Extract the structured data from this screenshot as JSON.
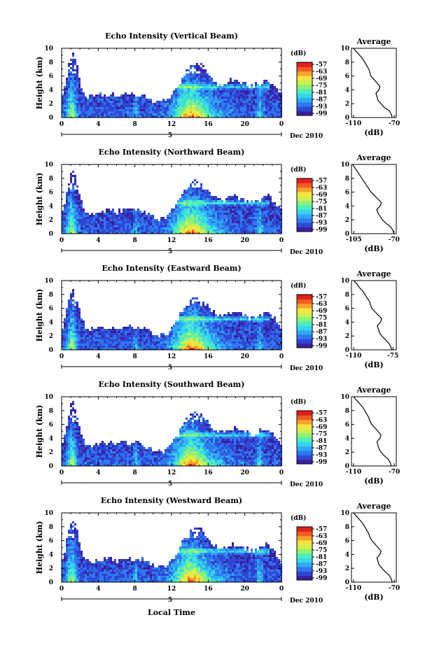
{
  "figure": {
    "xlabel": "Local Time",
    "date_label": "Dec 2010",
    "day_marker": "5",
    "colorbar_unit": "(dB)",
    "colorbar_ticks": [
      "-57",
      "-63",
      "-69",
      "-75",
      "-81",
      "-87",
      "-93",
      "-99"
    ],
    "colorbar_colors": [
      "#3a1fa0",
      "#2f46d4",
      "#2f78ee",
      "#30a8f5",
      "#36d7ee",
      "#4ef0b8",
      "#8ff07a",
      "#cff04c",
      "#f5e440",
      "#f7a22e",
      "#f25c22",
      "#e01f1a"
    ],
    "average_title": "Average",
    "average_xlabel": "(dB)"
  },
  "chart_data": [
    {
      "type": "heatmap",
      "title": "Echo Intensity (Vertical Beam)",
      "xlabel": "",
      "ylabel": "Height (km)",
      "x_ticks": [
        "0",
        "4",
        "8",
        "12",
        "16",
        "20",
        "0"
      ],
      "y_ticks": [
        "0",
        "2",
        "4",
        "6",
        "8",
        "10"
      ],
      "xlim": [
        0,
        24
      ],
      "ylim": [
        0,
        10
      ],
      "value_range_db": [
        -99,
        -57
      ],
      "average": {
        "x_ticks": [
          "-110",
          "-70"
        ],
        "xlim": [
          -112,
          -68
        ],
        "height_km": [
          0,
          0.5,
          1,
          1.5,
          2,
          2.5,
          3,
          3.5,
          4,
          4.5,
          5,
          5.5,
          6,
          6.5,
          7,
          7.5,
          8,
          8.5,
          9,
          9.5,
          10
        ],
        "db": [
          -72,
          -73,
          -75,
          -80,
          -83,
          -86,
          -87,
          -88,
          -85,
          -84,
          -87,
          -90,
          -93,
          -94,
          -95,
          -97,
          -99,
          -101,
          -104,
          -107,
          -110
        ]
      }
    },
    {
      "type": "heatmap",
      "title": "Echo Intensity (Northward Beam)",
      "xlabel": "",
      "ylabel": "Height (km)",
      "x_ticks": [
        "0",
        "4",
        "8",
        "12",
        "16",
        "20",
        "0"
      ],
      "y_ticks": [
        "0",
        "2",
        "4",
        "6",
        "8",
        "10"
      ],
      "xlim": [
        0,
        24
      ],
      "ylim": [
        0,
        10
      ],
      "value_range_db": [
        -99,
        -57
      ],
      "average": {
        "x_ticks": [
          "-105",
          "-70"
        ],
        "xlim": [
          -107,
          -68
        ],
        "height_km": [
          0,
          0.5,
          1,
          1.5,
          2,
          2.5,
          3,
          3.5,
          4,
          4.5,
          5,
          5.5,
          6,
          6.5,
          7,
          7.5,
          8,
          8.5,
          9,
          9.5,
          10
        ],
        "db": [
          -70,
          -71,
          -73,
          -77,
          -80,
          -82,
          -84,
          -85,
          -82,
          -81,
          -84,
          -87,
          -90,
          -92,
          -94,
          -96,
          -98,
          -100,
          -102,
          -104,
          -106
        ]
      }
    },
    {
      "type": "heatmap",
      "title": "Echo Intensity (Eastward Beam)",
      "xlabel": "",
      "ylabel": "Height (km)",
      "x_ticks": [
        "0",
        "4",
        "8",
        "12",
        "16",
        "20",
        "0"
      ],
      "y_ticks": [
        "0",
        "2",
        "4",
        "6",
        "8",
        "10"
      ],
      "xlim": [
        0,
        24
      ],
      "ylim": [
        0,
        10
      ],
      "value_range_db": [
        -99,
        -57
      ],
      "average": {
        "x_ticks": [
          "-110",
          "-75"
        ],
        "xlim": [
          -112,
          -72
        ],
        "height_km": [
          0,
          0.5,
          1,
          1.5,
          2,
          2.5,
          3,
          3.5,
          4,
          4.5,
          5,
          5.5,
          6,
          6.5,
          7,
          7.5,
          8,
          8.5,
          9,
          9.5,
          10
        ],
        "db": [
          -76,
          -77,
          -79,
          -82,
          -85,
          -87,
          -88,
          -89,
          -86,
          -85,
          -88,
          -91,
          -94,
          -95,
          -96,
          -98,
          -100,
          -102,
          -105,
          -107,
          -110
        ]
      }
    },
    {
      "type": "heatmap",
      "title": "Echo Intensity (Southward Beam)",
      "xlabel": "",
      "ylabel": "Height (km)",
      "x_ticks": [
        "0",
        "4",
        "8",
        "12",
        "16",
        "20",
        "0"
      ],
      "y_ticks": [
        "0",
        "2",
        "4",
        "6",
        "8",
        "10"
      ],
      "xlim": [
        0,
        24
      ],
      "ylim": [
        0,
        10
      ],
      "value_range_db": [
        -99,
        -57
      ],
      "average": {
        "x_ticks": [
          "-110",
          "-70"
        ],
        "xlim": [
          -112,
          -68
        ],
        "height_km": [
          0,
          0.5,
          1,
          1.5,
          2,
          2.5,
          3,
          3.5,
          4,
          4.5,
          5,
          5.5,
          6,
          6.5,
          7,
          7.5,
          8,
          8.5,
          9,
          9.5,
          10
        ],
        "db": [
          -73,
          -74,
          -76,
          -80,
          -83,
          -85,
          -86,
          -87,
          -84,
          -83,
          -86,
          -89,
          -92,
          -94,
          -95,
          -97,
          -99,
          -101,
          -104,
          -107,
          -110
        ]
      }
    },
    {
      "type": "heatmap",
      "title": "Echo Intensity (Westward Beam)",
      "xlabel": "",
      "ylabel": "Height (km)",
      "x_ticks": [
        "0",
        "4",
        "8",
        "12",
        "16",
        "20",
        "0"
      ],
      "y_ticks": [
        "0",
        "2",
        "4",
        "6",
        "8",
        "10"
      ],
      "xlim": [
        0,
        24
      ],
      "ylim": [
        0,
        10
      ],
      "value_range_db": [
        -99,
        -57
      ],
      "average": {
        "x_ticks": [
          "-110",
          "-70"
        ],
        "xlim": [
          -112,
          -68
        ],
        "height_km": [
          0,
          0.5,
          1,
          1.5,
          2,
          2.5,
          3,
          3.5,
          4,
          4.5,
          5,
          5.5,
          6,
          6.5,
          7,
          7.5,
          8,
          8.5,
          9,
          9.5,
          10
        ],
        "db": [
          -72,
          -73,
          -75,
          -79,
          -82,
          -85,
          -86,
          -87,
          -84,
          -83,
          -86,
          -89,
          -92,
          -94,
          -95,
          -97,
          -99,
          -101,
          -104,
          -107,
          -110
        ]
      }
    }
  ]
}
